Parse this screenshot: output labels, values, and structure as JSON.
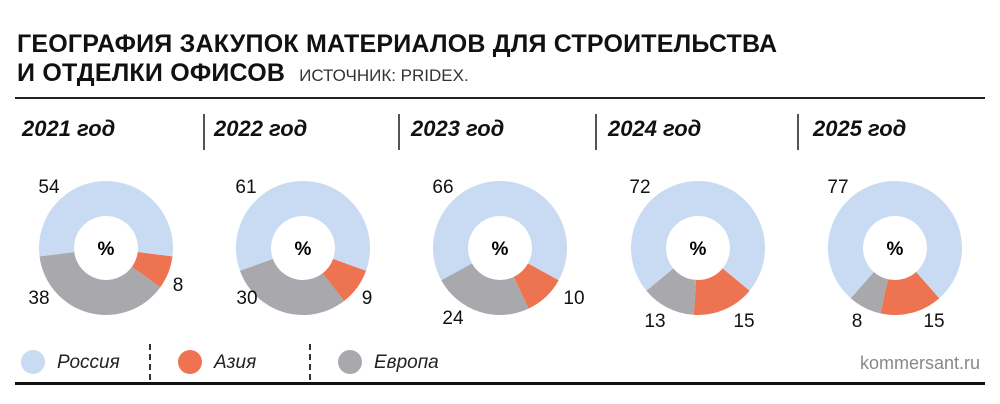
{
  "title_line1": "ГЕОГРАФИЯ ЗАКУПОК МАТЕРИАЛОВ ДЛЯ СТРОИТЕЛЬСТВА",
  "title_line2": "И ОТДЕЛКИ ОФИСОВ",
  "source": "ИСТОЧНИК: PRIDEX.",
  "brand": "kommersant.ru",
  "chart_data": {
    "type": "pie",
    "donut": true,
    "center_label": "%",
    "categories": [
      "2021 год",
      "2022 год",
      "2023 год",
      "2024 год",
      "2025 год"
    ],
    "series": [
      {
        "name": "Россия",
        "color": "#c8dbf2",
        "values": [
          54,
          61,
          66,
          72,
          77
        ]
      },
      {
        "name": "Азия",
        "color": "#ee7350",
        "values": [
          8,
          9,
          10,
          15,
          15
        ]
      },
      {
        "name": "Европа",
        "color": "#a9a9ad",
        "values": [
          38,
          30,
          24,
          13,
          8
        ]
      }
    ],
    "legend": "bottom-left"
  }
}
